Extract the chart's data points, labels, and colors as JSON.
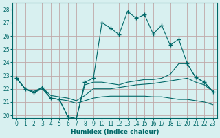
{
  "xlabel": "Humidex (Indice chaleur)",
  "xlim": [
    -0.5,
    23.5
  ],
  "ylim": [
    19.8,
    28.5
  ],
  "yticks": [
    20,
    21,
    22,
    23,
    24,
    25,
    26,
    27,
    28
  ],
  "xticks": [
    0,
    1,
    2,
    3,
    4,
    5,
    6,
    7,
    8,
    9,
    10,
    11,
    12,
    13,
    14,
    15,
    16,
    17,
    18,
    19,
    20,
    21,
    22,
    23
  ],
  "bg_color": "#d8f0f0",
  "line_color": "#006868",
  "grid_color": "#c0a8a8",
  "lines": [
    {
      "x": [
        0,
        1,
        2,
        3,
        4,
        5,
        6,
        7,
        8,
        9,
        10,
        11,
        12,
        13,
        14,
        15,
        16,
        17,
        18,
        19,
        20,
        21,
        22,
        23
      ],
      "y": [
        22.8,
        22.0,
        21.7,
        22.1,
        21.3,
        21.2,
        19.9,
        19.75,
        22.5,
        22.8,
        27.0,
        26.6,
        26.1,
        27.85,
        27.35,
        27.6,
        26.15,
        26.8,
        25.3,
        25.75,
        23.9,
        22.85,
        22.5,
        21.8
      ],
      "marker": "+"
    },
    {
      "x": [
        0,
        1,
        2,
        3,
        4,
        5,
        6,
        7,
        8,
        9,
        10,
        11,
        12,
        13,
        14,
        15,
        16,
        17,
        18,
        19,
        20,
        21,
        22,
        23
      ],
      "y": [
        22.8,
        22.0,
        21.7,
        22.1,
        21.3,
        21.2,
        19.9,
        19.75,
        22.3,
        22.5,
        22.5,
        22.4,
        22.3,
        22.5,
        22.6,
        22.7,
        22.7,
        22.8,
        23.1,
        23.9,
        23.9,
        22.85,
        22.5,
        21.8
      ],
      "marker": null
    },
    {
      "x": [
        0,
        1,
        2,
        3,
        4,
        5,
        6,
        7,
        8,
        9,
        10,
        11,
        12,
        13,
        14,
        15,
        16,
        17,
        18,
        19,
        20,
        21,
        22,
        23
      ],
      "y": [
        22.8,
        22.0,
        21.8,
        22.1,
        21.5,
        21.4,
        21.3,
        21.1,
        21.5,
        22.0,
        22.0,
        22.0,
        22.1,
        22.2,
        22.3,
        22.35,
        22.4,
        22.5,
        22.6,
        22.7,
        22.8,
        22.5,
        22.3,
        21.8
      ],
      "marker": null
    },
    {
      "x": [
        0,
        1,
        2,
        3,
        4,
        5,
        6,
        7,
        8,
        9,
        10,
        11,
        12,
        13,
        14,
        15,
        16,
        17,
        18,
        19,
        20,
        21,
        22,
        23
      ],
      "y": [
        22.8,
        22.0,
        21.7,
        22.0,
        21.3,
        21.2,
        21.1,
        20.9,
        21.1,
        21.3,
        21.4,
        21.45,
        21.45,
        21.45,
        21.45,
        21.45,
        21.4,
        21.4,
        21.3,
        21.2,
        21.2,
        21.1,
        21.0,
        20.8
      ],
      "marker": null
    }
  ]
}
